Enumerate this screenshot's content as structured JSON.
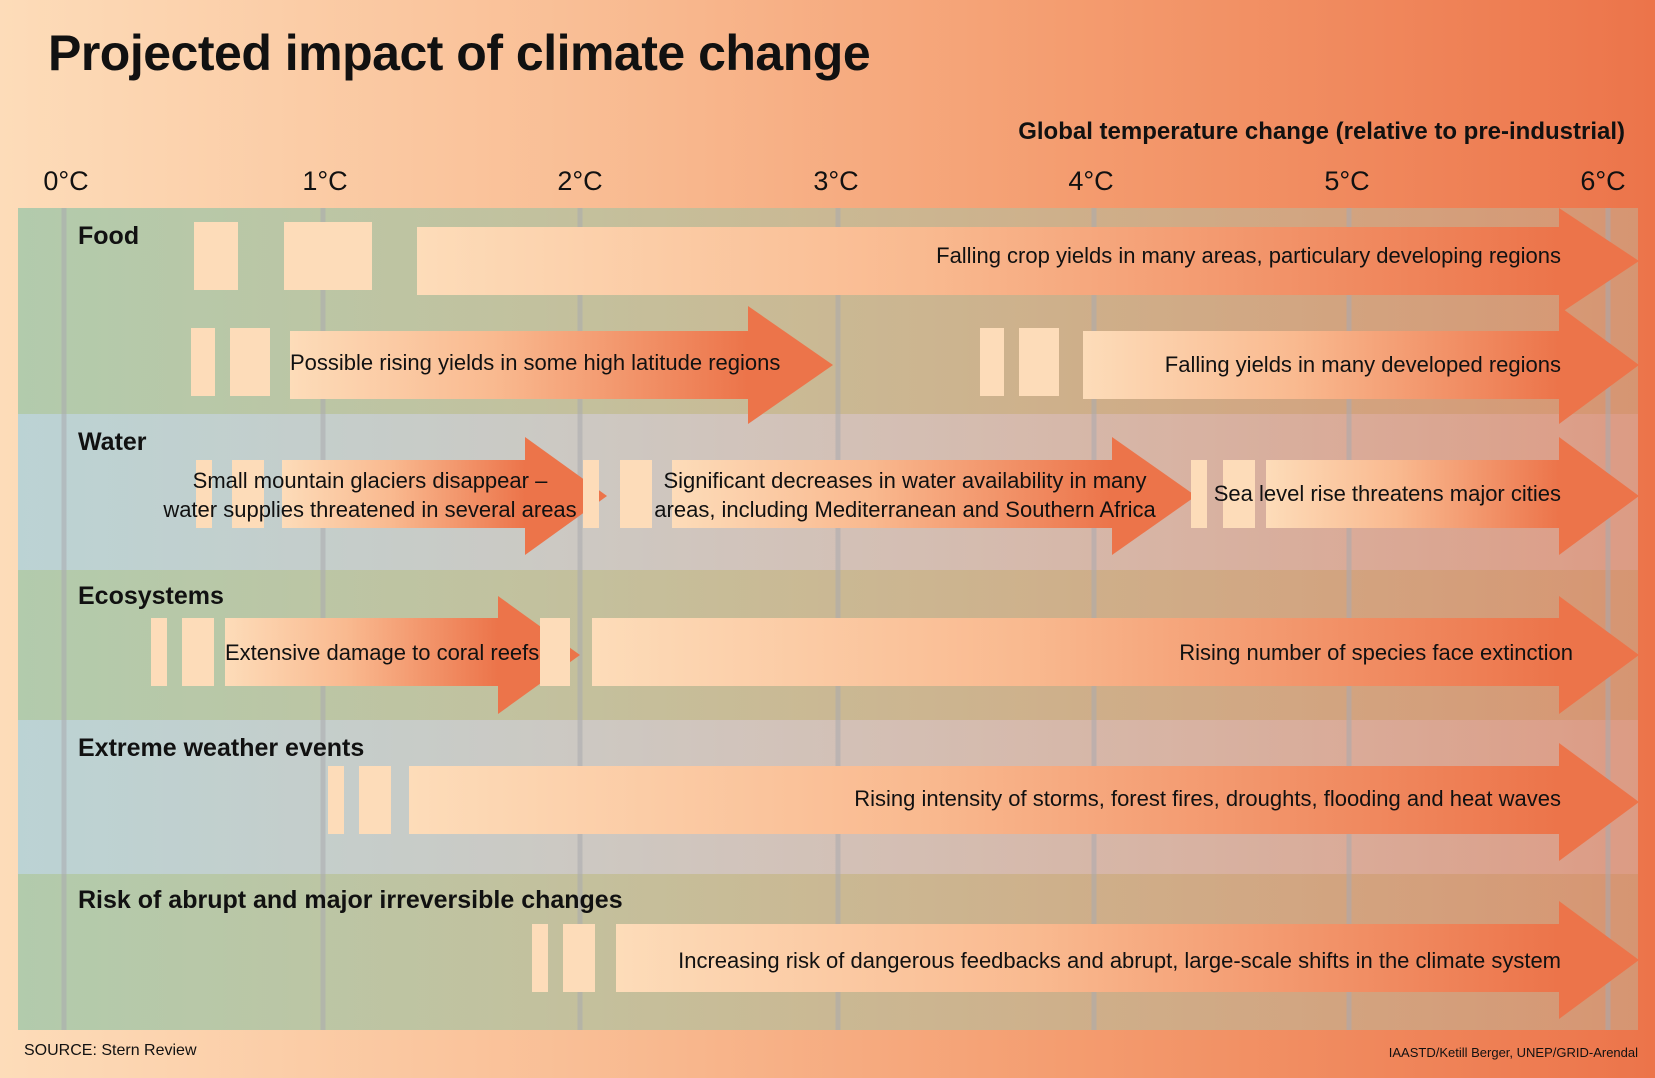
{
  "title": "Projected impact of climate change",
  "axis_title": "Global temperature change (relative to pre-industrial)",
  "ticks": [
    "0°C",
    "1°C",
    "2°C",
    "3°C",
    "4°C",
    "5°C",
    "6°C"
  ],
  "categories": {
    "food": "Food",
    "water": "Water",
    "ecosystems": "Ecosystems",
    "extreme": "Extreme weather events",
    "abrupt": "Risk of abrupt and major irreversible changes"
  },
  "impacts": {
    "food_falling_crops": "Falling crop yields in many areas, particulary developing regions",
    "food_rising_yields": "Possible rising yields in some high latitude regions",
    "food_falling_developed": "Falling yields in many developed regions",
    "water_glaciers_1": "Small mountain glaciers disappear –",
    "water_glaciers_2": "water supplies threatened in several areas",
    "water_decrease_1": "Significant decreases in water availability in many",
    "water_decrease_2": "areas, including Mediterranean and Southern Africa",
    "water_sea_level": "Sea level rise threatens major cities",
    "eco_coral": "Extensive damage to coral reefs",
    "eco_species": "Rising number of species face extinction",
    "extreme_storms": "Rising intensity of storms, forest fires, droughts, flooding and heat waves",
    "abrupt_feedbacks": "Increasing risk of dangerous feedbacks and abrupt, large-scale shifts in the climate system"
  },
  "source": "SOURCE: Stern Review",
  "credit": "IAASTD/Ketill Berger, UNEP/GRID-Arendal",
  "colors": {
    "arrow_end": "#ec744a",
    "arrow_start": "#fddcb9"
  }
}
